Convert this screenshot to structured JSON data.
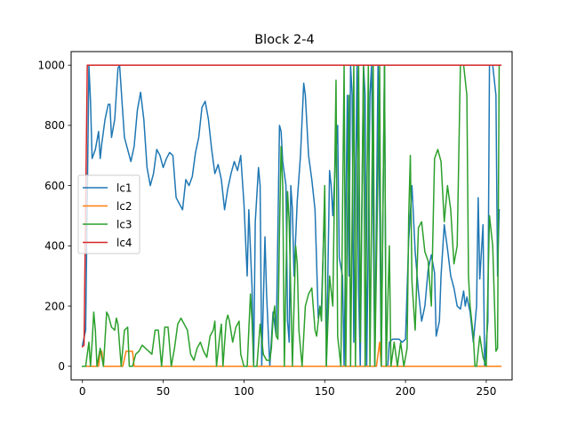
{
  "chart_data": {
    "type": "line",
    "title": "Block 2-4",
    "xlabel": "",
    "ylabel": "",
    "xlim": [
      -7,
      266
    ],
    "ylim": [
      -45,
      1045
    ],
    "xticks": [
      0,
      50,
      100,
      150,
      200,
      250
    ],
    "yticks": [
      0,
      200,
      400,
      600,
      800,
      1000
    ],
    "grid": false,
    "legend_position": "center-left",
    "series": [
      {
        "name": "lc1",
        "color": "#1f77b4",
        "points": [
          [
            0,
            70
          ],
          [
            2,
            120
          ],
          [
            4,
            1000
          ],
          [
            5,
            880
          ],
          [
            6,
            690
          ],
          [
            8,
            720
          ],
          [
            10,
            780
          ],
          [
            11,
            690
          ],
          [
            12,
            740
          ],
          [
            14,
            820
          ],
          [
            16,
            870
          ],
          [
            17,
            870
          ],
          [
            18,
            760
          ],
          [
            20,
            820
          ],
          [
            22,
            990
          ],
          [
            23,
            1000
          ],
          [
            24,
            920
          ],
          [
            26,
            760
          ],
          [
            28,
            720
          ],
          [
            30,
            680
          ],
          [
            32,
            730
          ],
          [
            34,
            850
          ],
          [
            36,
            910
          ],
          [
            38,
            820
          ],
          [
            40,
            660
          ],
          [
            42,
            600
          ],
          [
            44,
            640
          ],
          [
            46,
            720
          ],
          [
            48,
            700
          ],
          [
            50,
            660
          ],
          [
            52,
            690
          ],
          [
            54,
            710
          ],
          [
            56,
            700
          ],
          [
            58,
            560
          ],
          [
            60,
            540
          ],
          [
            62,
            520
          ],
          [
            64,
            620
          ],
          [
            66,
            600
          ],
          [
            68,
            630
          ],
          [
            70,
            710
          ],
          [
            72,
            760
          ],
          [
            74,
            860
          ],
          [
            76,
            880
          ],
          [
            78,
            820
          ],
          [
            80,
            720
          ],
          [
            82,
            640
          ],
          [
            84,
            670
          ],
          [
            86,
            620
          ],
          [
            88,
            520
          ],
          [
            90,
            590
          ],
          [
            92,
            640
          ],
          [
            94,
            680
          ],
          [
            96,
            650
          ],
          [
            98,
            700
          ],
          [
            100,
            540
          ],
          [
            102,
            300
          ],
          [
            103,
            520
          ],
          [
            105,
            260
          ],
          [
            106,
            0
          ],
          [
            107,
            480
          ],
          [
            109,
            660
          ],
          [
            110,
            600
          ],
          [
            111,
            0
          ],
          [
            113,
            430
          ],
          [
            114,
            240
          ],
          [
            116,
            0
          ],
          [
            118,
            180
          ],
          [
            120,
            100
          ],
          [
            122,
            800
          ],
          [
            123,
            780
          ],
          [
            124,
            680
          ],
          [
            126,
            600
          ],
          [
            127,
            150
          ],
          [
            128,
            80
          ],
          [
            129,
            600
          ],
          [
            130,
            520
          ],
          [
            131,
            300
          ],
          [
            133,
            550
          ],
          [
            135,
            700
          ],
          [
            137,
            940
          ],
          [
            138,
            900
          ],
          [
            140,
            700
          ],
          [
            142,
            620
          ],
          [
            144,
            520
          ],
          [
            146,
            160
          ],
          [
            148,
            200
          ],
          [
            150,
            550
          ],
          [
            151,
            0
          ],
          [
            153,
            650
          ],
          [
            154,
            600
          ],
          [
            155,
            500
          ],
          [
            157,
            720
          ],
          [
            158,
            800
          ],
          [
            159,
            360
          ],
          [
            161,
            300
          ],
          [
            162,
            0
          ],
          [
            164,
            900
          ],
          [
            165,
            300
          ],
          [
            166,
            1000
          ],
          [
            167,
            900
          ],
          [
            168,
            80
          ],
          [
            170,
            1000
          ],
          [
            171,
            250
          ],
          [
            172,
            0
          ],
          [
            174,
            1000
          ],
          [
            175,
            900
          ],
          [
            176,
            0
          ],
          [
            178,
            900
          ],
          [
            179,
            1000
          ],
          [
            180,
            500
          ],
          [
            181,
            0
          ],
          [
            183,
            1000
          ],
          [
            184,
            550
          ],
          [
            185,
            0
          ],
          [
            187,
            1000
          ],
          [
            188,
            0
          ],
          [
            189,
            0
          ],
          [
            190,
            80
          ],
          [
            192,
            90
          ],
          [
            194,
            90
          ],
          [
            196,
            90
          ],
          [
            198,
            80
          ],
          [
            200,
            90
          ],
          [
            202,
            420
          ],
          [
            204,
            600
          ],
          [
            206,
            380
          ],
          [
            208,
            250
          ],
          [
            210,
            150
          ],
          [
            212,
            200
          ],
          [
            214,
            320
          ],
          [
            216,
            370
          ],
          [
            218,
            310
          ],
          [
            219,
            100
          ],
          [
            221,
            150
          ],
          [
            222,
            300
          ],
          [
            224,
            470
          ],
          [
            226,
            390
          ],
          [
            228,
            300
          ],
          [
            230,
            260
          ],
          [
            232,
            200
          ],
          [
            234,
            190
          ],
          [
            236,
            250
          ],
          [
            237,
            200
          ],
          [
            238,
            230
          ],
          [
            240,
            180
          ],
          [
            242,
            80
          ],
          [
            244,
            200
          ],
          [
            245,
            560
          ],
          [
            246,
            290
          ],
          [
            248,
            470
          ],
          [
            249,
            0
          ],
          [
            251,
            150
          ],
          [
            252,
            1000
          ],
          [
            254,
            1000
          ],
          [
            256,
            900
          ],
          [
            257,
            300
          ],
          [
            258,
            520
          ]
        ]
      },
      {
        "name": "lc2",
        "color": "#ff7f0e",
        "points": [
          [
            0,
            0
          ],
          [
            10,
            0
          ],
          [
            11,
            50
          ],
          [
            12,
            50
          ],
          [
            13,
            0
          ],
          [
            25,
            0
          ],
          [
            27,
            50
          ],
          [
            31,
            50
          ],
          [
            32,
            0
          ],
          [
            182,
            0
          ],
          [
            184,
            80
          ],
          [
            185,
            0
          ],
          [
            259,
            0
          ]
        ]
      },
      {
        "name": "lc3",
        "color": "#2ca02c",
        "points": [
          [
            0,
            0
          ],
          [
            2,
            0
          ],
          [
            4,
            80
          ],
          [
            5,
            0
          ],
          [
            6,
            80
          ],
          [
            7,
            180
          ],
          [
            8,
            120
          ],
          [
            9,
            0
          ],
          [
            11,
            60
          ],
          [
            13,
            0
          ],
          [
            15,
            180
          ],
          [
            16,
            170
          ],
          [
            18,
            130
          ],
          [
            20,
            120
          ],
          [
            21,
            160
          ],
          [
            22,
            140
          ],
          [
            24,
            0
          ],
          [
            26,
            120
          ],
          [
            28,
            130
          ],
          [
            29,
            0
          ],
          [
            31,
            0
          ],
          [
            33,
            40
          ],
          [
            35,
            50
          ],
          [
            37,
            70
          ],
          [
            39,
            60
          ],
          [
            41,
            50
          ],
          [
            43,
            40
          ],
          [
            45,
            120
          ],
          [
            47,
            120
          ],
          [
            49,
            0
          ],
          [
            51,
            130
          ],
          [
            53,
            130
          ],
          [
            55,
            0
          ],
          [
            57,
            60
          ],
          [
            59,
            140
          ],
          [
            61,
            160
          ],
          [
            63,
            140
          ],
          [
            65,
            120
          ],
          [
            67,
            40
          ],
          [
            69,
            20
          ],
          [
            71,
            60
          ],
          [
            73,
            80
          ],
          [
            75,
            50
          ],
          [
            77,
            30
          ],
          [
            79,
            100
          ],
          [
            81,
            120
          ],
          [
            82,
            150
          ],
          [
            83,
            0
          ],
          [
            85,
            100
          ],
          [
            86,
            140
          ],
          [
            87,
            0
          ],
          [
            89,
            150
          ],
          [
            90,
            170
          ],
          [
            91,
            150
          ],
          [
            93,
            80
          ],
          [
            95,
            130
          ],
          [
            97,
            150
          ],
          [
            98,
            40
          ],
          [
            100,
            0
          ],
          [
            102,
            0
          ],
          [
            104,
            240
          ],
          [
            105,
            150
          ],
          [
            106,
            0
          ],
          [
            108,
            0
          ],
          [
            110,
            140
          ],
          [
            112,
            40
          ],
          [
            114,
            20
          ],
          [
            116,
            20
          ],
          [
            117,
            60
          ],
          [
            118,
            160
          ],
          [
            119,
            200
          ],
          [
            120,
            100
          ],
          [
            121,
            90
          ],
          [
            122,
            450
          ],
          [
            123,
            730
          ],
          [
            124,
            600
          ],
          [
            125,
            0
          ],
          [
            127,
            580
          ],
          [
            128,
            480
          ],
          [
            130,
            0
          ],
          [
            132,
            400
          ],
          [
            133,
            340
          ],
          [
            134,
            120
          ],
          [
            136,
            0
          ],
          [
            138,
            200
          ],
          [
            140,
            240
          ],
          [
            142,
            260
          ],
          [
            144,
            120
          ],
          [
            145,
            100
          ],
          [
            147,
            200
          ],
          [
            148,
            150
          ],
          [
            150,
            600
          ],
          [
            151,
            0
          ],
          [
            153,
            300
          ],
          [
            155,
            200
          ],
          [
            157,
            950
          ],
          [
            158,
            100
          ],
          [
            160,
            0
          ],
          [
            162,
            1000
          ],
          [
            163,
            0
          ],
          [
            165,
            900
          ],
          [
            166,
            0
          ],
          [
            168,
            1000
          ],
          [
            169,
            0
          ],
          [
            171,
            1000
          ],
          [
            172,
            80
          ],
          [
            174,
            1000
          ],
          [
            175,
            0
          ],
          [
            177,
            1000
          ],
          [
            178,
            0
          ],
          [
            180,
            1000
          ],
          [
            181,
            0
          ],
          [
            184,
            1000
          ],
          [
            185,
            0
          ],
          [
            187,
            1000
          ],
          [
            188,
            0
          ],
          [
            190,
            400
          ],
          [
            191,
            0
          ],
          [
            193,
            80
          ],
          [
            195,
            0
          ],
          [
            197,
            80
          ],
          [
            199,
            0
          ],
          [
            201,
            60
          ],
          [
            202,
            500
          ],
          [
            203,
            700
          ],
          [
            204,
            280
          ],
          [
            206,
            120
          ],
          [
            208,
            460
          ],
          [
            210,
            480
          ],
          [
            212,
            380
          ],
          [
            214,
            350
          ],
          [
            216,
            200
          ],
          [
            218,
            690
          ],
          [
            220,
            720
          ],
          [
            222,
            680
          ],
          [
            224,
            480
          ],
          [
            226,
            600
          ],
          [
            228,
            520
          ],
          [
            230,
            340
          ],
          [
            232,
            400
          ],
          [
            234,
            1000
          ],
          [
            236,
            1000
          ],
          [
            238,
            900
          ],
          [
            239,
            300
          ],
          [
            240,
            200
          ],
          [
            242,
            100
          ],
          [
            243,
            0
          ],
          [
            244,
            0
          ],
          [
            246,
            100
          ],
          [
            248,
            30
          ],
          [
            250,
            0
          ],
          [
            252,
            500
          ],
          [
            254,
            400
          ],
          [
            256,
            50
          ],
          [
            257,
            60
          ],
          [
            258,
            1000
          ]
        ]
      },
      {
        "name": "lc4",
        "color": "#d62728",
        "points": [
          [
            0,
            65
          ],
          [
            1,
            70
          ],
          [
            3,
            1000
          ],
          [
            259,
            1000
          ]
        ]
      }
    ]
  }
}
